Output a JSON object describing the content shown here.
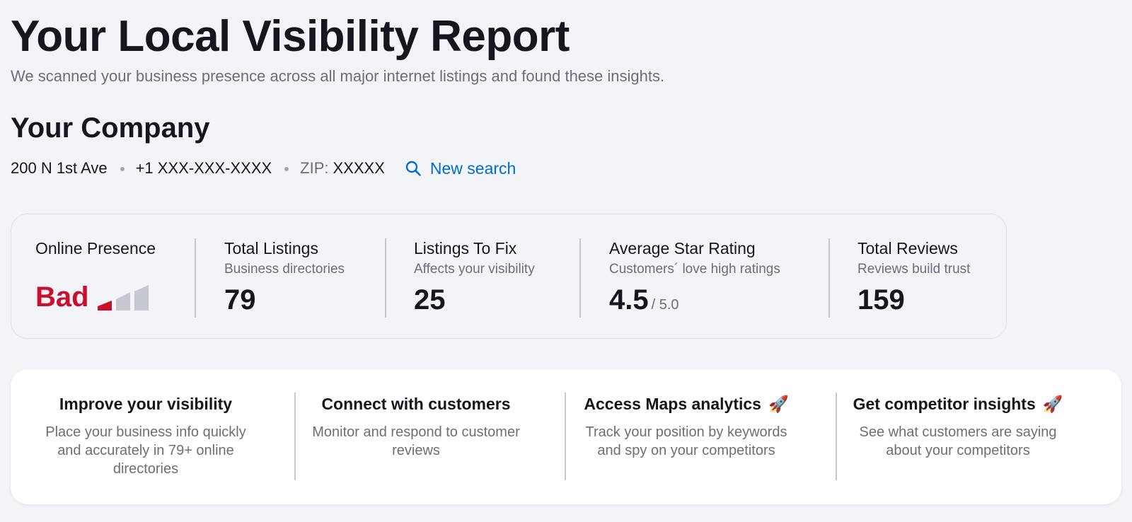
{
  "header": {
    "title": "Your Local Visibility Report",
    "subtitle": "We scanned your business presence across all major internet listings and found these insights."
  },
  "company": {
    "name": "Your Company",
    "address": "200 N 1st Ave",
    "phone": "+1 XXX-XXX-XXXX",
    "zip_label": "ZIP:",
    "zip_value": "XXXXX",
    "new_search_label": "New search",
    "new_search_icon": "search-icon"
  },
  "metrics": {
    "online_presence": {
      "title": "Online Presence",
      "status": "Bad",
      "signal_level": 1,
      "signal_max": 3,
      "status_color": "#c8102e"
    },
    "total_listings": {
      "title": "Total Listings",
      "subtitle": "Business directories",
      "value": "79"
    },
    "listings_to_fix": {
      "title": "Listings To Fix",
      "subtitle": "Affects your visibility",
      "value": "25"
    },
    "average_star_rating": {
      "title": "Average Star Rating",
      "subtitle": "Customers´ love high ratings",
      "value": "4.5",
      "suffix": "/ 5.0"
    },
    "total_reviews": {
      "title": "Total Reviews",
      "subtitle": "Reviews build trust",
      "value": "159"
    }
  },
  "features": [
    {
      "title": "Improve your visibility",
      "description": "Place your business info quickly and accurately in 79+ online directories",
      "icon": ""
    },
    {
      "title": "Connect with customers",
      "description": "Monitor and respond to customer reviews",
      "icon": ""
    },
    {
      "title": "Access Maps analytics",
      "description": "Track your position by keywords and spy on your competitors",
      "icon": "rocket-icon"
    },
    {
      "title": "Get competitor insights",
      "description": "See what customers are saying about your competitors",
      "icon": "rocket-icon"
    }
  ],
  "colors": {
    "background": "#f3f4f8",
    "accent_link": "#006dca",
    "bad_status": "#c8102e",
    "signal_inactive": "#c5c8d1"
  }
}
